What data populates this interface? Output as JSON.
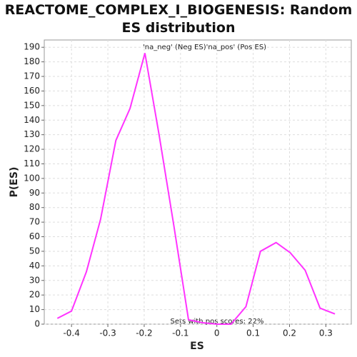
{
  "chart_data": {
    "type": "line",
    "title": "REACTOME_COMPLEX_I_BIOGENESIS: Random ES distribution",
    "xlabel": "ES",
    "ylabel": "P(ES)",
    "x": [
      -0.439,
      -0.4,
      -0.359,
      -0.32,
      -0.278,
      -0.239,
      -0.198,
      -0.159,
      -0.118,
      -0.078,
      -0.039,
      0,
      0.039,
      0.08,
      0.12,
      0.163,
      0.202,
      0.243,
      0.284,
      0.325
    ],
    "series": [
      {
        "color": "#ff33ff",
        "values": [
          4,
          9,
          36,
          72,
          126,
          148,
          186,
          130,
          67,
          3,
          1,
          0,
          0,
          12,
          50,
          56,
          49,
          37,
          11,
          7
        ]
      }
    ],
    "legend": [
      {
        "label": "'na_neg' (Neg ES)",
        "color": "#2222ee"
      },
      {
        "label": "'na_pos' (Pos ES)",
        "color": "#ee2222"
      }
    ],
    "annotation": "Sets with pos scores: 22%",
    "xlim": [
      -0.475,
      0.37
    ],
    "xticks": [
      -0.4,
      -0.3,
      -0.2,
      -0.1,
      0,
      0.1,
      0.2,
      0.3
    ],
    "ylim": [
      0,
      195
    ],
    "yticks": [
      0,
      10,
      20,
      30,
      40,
      50,
      60,
      70,
      80,
      90,
      100,
      110,
      120,
      130,
      140,
      150,
      160,
      170,
      180,
      190
    ],
    "grid": true
  }
}
